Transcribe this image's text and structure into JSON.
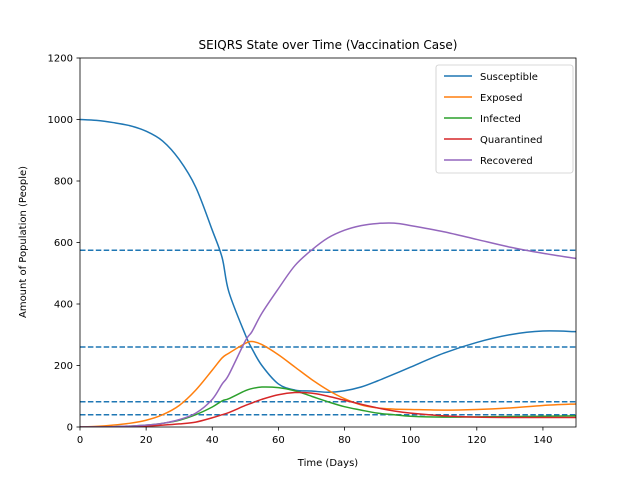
{
  "chart_data": {
    "type": "line",
    "title": "SEIQRS State over Time (Vaccination Case)",
    "xlabel": "Time (Days)",
    "ylabel": "Amount of Population (People)",
    "xlim": [
      0,
      150
    ],
    "ylim": [
      0,
      1200
    ],
    "xticks": [
      0,
      20,
      40,
      60,
      80,
      100,
      120,
      140
    ],
    "yticks": [
      0,
      200,
      400,
      600,
      800,
      1000,
      1200
    ],
    "grid": false,
    "legend_position": "top-right",
    "x": [
      0,
      5,
      10,
      15,
      20,
      25,
      30,
      35,
      40,
      43,
      45,
      50,
      52,
      55,
      60,
      65,
      70,
      75,
      80,
      85,
      90,
      95,
      100,
      110,
      120,
      130,
      140,
      150
    ],
    "series": [
      {
        "name": "Susceptible",
        "color": "#1f77b4",
        "values": [
          1000,
          997,
          990,
          980,
          962,
          930,
          870,
          780,
          640,
          550,
          440,
          300,
          255,
          200,
          140,
          120,
          117,
          113,
          118,
          130,
          150,
          172,
          195,
          240,
          275,
          300,
          312,
          310
        ]
      },
      {
        "name": "Exposed",
        "color": "#ff7f0e",
        "values": [
          0,
          2,
          6,
          12,
          22,
          40,
          70,
          120,
          185,
          225,
          240,
          272,
          278,
          268,
          235,
          195,
          155,
          120,
          92,
          72,
          62,
          58,
          57,
          55,
          57,
          62,
          70,
          75
        ]
      },
      {
        "name": "Infected",
        "color": "#2ca02c",
        "values": [
          0,
          0,
          1,
          3,
          6,
          12,
          22,
          40,
          65,
          85,
          92,
          118,
          125,
          130,
          128,
          118,
          100,
          82,
          66,
          55,
          45,
          40,
          35,
          32,
          33,
          34,
          35,
          36
        ]
      },
      {
        "name": "Quarantined",
        "color": "#d62728",
        "values": [
          0,
          0,
          0,
          1,
          3,
          6,
          10,
          16,
          30,
          40,
          47,
          70,
          78,
          90,
          105,
          112,
          110,
          100,
          87,
          74,
          62,
          52,
          45,
          36,
          32,
          31,
          31,
          31
        ]
      },
      {
        "name": "Recovered",
        "color": "#9467bd",
        "values": [
          0,
          0,
          1,
          3,
          6,
          12,
          24,
          45,
          90,
          140,
          170,
          280,
          310,
          370,
          450,
          525,
          575,
          615,
          640,
          655,
          662,
          663,
          655,
          635,
          610,
          585,
          565,
          548
        ]
      }
    ],
    "reference_lines": [
      {
        "y": 575,
        "color": "#1f77b4",
        "style": "dashed"
      },
      {
        "y": 260,
        "color": "#1f77b4",
        "style": "dashed"
      },
      {
        "y": 82,
        "color": "#1f77b4",
        "style": "dashed"
      },
      {
        "y": 40,
        "color": "#1f77b4",
        "style": "dashed"
      }
    ]
  }
}
